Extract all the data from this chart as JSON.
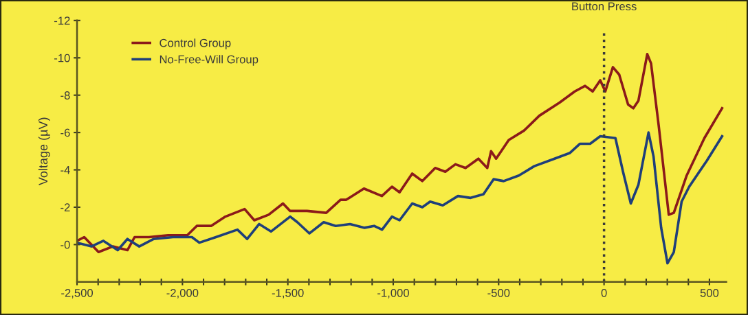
{
  "chart_data": {
    "type": "line",
    "ylabel": "Voltage (µV)",
    "legend": "top left",
    "grid": false,
    "marker": "none",
    "line_style": "solid",
    "xlim": [
      -2500,
      580
    ],
    "ylim": [
      2,
      -12
    ],
    "xticks": [
      {
        "value": -2500,
        "label": "-2,500"
      },
      {
        "value": -2400,
        "label": null
      },
      {
        "value": -2300,
        "label": null
      },
      {
        "value": -2200,
        "label": null
      },
      {
        "value": -2100,
        "label": null
      },
      {
        "value": -2000,
        "label": "-2,000"
      },
      {
        "value": -1900,
        "label": null
      },
      {
        "value": -1800,
        "label": null
      },
      {
        "value": -1700,
        "label": null
      },
      {
        "value": -1600,
        "label": null
      },
      {
        "value": -1500,
        "label": "-1,500"
      },
      {
        "value": -1400,
        "label": null
      },
      {
        "value": -1300,
        "label": null
      },
      {
        "value": -1200,
        "label": null
      },
      {
        "value": -1100,
        "label": null
      },
      {
        "value": -1000,
        "label": "-1,000"
      },
      {
        "value": -900,
        "label": null
      },
      {
        "value": -800,
        "label": null
      },
      {
        "value": -700,
        "label": null
      },
      {
        "value": -600,
        "label": null
      },
      {
        "value": -500,
        "label": "-500"
      },
      {
        "value": -400,
        "label": null
      },
      {
        "value": -300,
        "label": null
      },
      {
        "value": -200,
        "label": null
      },
      {
        "value": -100,
        "label": null
      },
      {
        "value": 0,
        "label": "0"
      },
      {
        "value": 100,
        "label": null
      },
      {
        "value": 200,
        "label": null
      },
      {
        "value": 300,
        "label": null
      },
      {
        "value": 400,
        "label": null
      },
      {
        "value": 500,
        "label": "500"
      }
    ],
    "yticks": [
      -12,
      -10,
      -8,
      -6,
      -4,
      -2,
      {
        "value": 0,
        "label": "-0"
      }
    ],
    "ref_lines": [
      {
        "axis": "x",
        "value": 0,
        "label": "Button Press",
        "color": "#3a3a3a",
        "line_style": "dotted"
      }
    ],
    "series": [
      {
        "name": "Control Group",
        "color": "#8b1a1a",
        "x": [
          -2500,
          -2466,
          -2398,
          -2330,
          -2261,
          -2227,
          -2159,
          -2068,
          -1977,
          -1932,
          -1864,
          -1796,
          -1705,
          -1659,
          -1591,
          -1523,
          -1489,
          -1409,
          -1318,
          -1250,
          -1223,
          -1139,
          -1054,
          -1006,
          -970,
          -910,
          -862,
          -801,
          -753,
          -705,
          -657,
          -596,
          -554,
          -536,
          -512,
          -452,
          -380,
          -307,
          -211,
          -139,
          -90,
          -54,
          -18,
          6,
          42,
          72,
          114,
          139,
          163,
          205,
          223,
          259,
          307,
          331,
          392,
          476,
          560
        ],
        "values": [
          -0.2,
          -0.4,
          0.4,
          0.1,
          0.3,
          -0.4,
          -0.4,
          -0.5,
          -0.5,
          -1.0,
          -1.0,
          -1.5,
          -1.9,
          -1.3,
          -1.6,
          -2.2,
          -1.8,
          -1.8,
          -1.7,
          -2.4,
          -2.4,
          -3.0,
          -2.6,
          -3.1,
          -2.8,
          -3.8,
          -3.4,
          -4.1,
          -3.9,
          -4.3,
          -4.1,
          -4.6,
          -4.1,
          -5.0,
          -4.6,
          -5.6,
          -6.1,
          -6.9,
          -7.6,
          -8.2,
          -8.5,
          -8.2,
          -8.8,
          -8.2,
          -9.5,
          -9.1,
          -7.5,
          -7.3,
          -7.7,
          -10.2,
          -9.7,
          -6.4,
          -1.6,
          -1.7,
          -3.7,
          -5.7,
          -7.3
        ]
      },
      {
        "name": "No-Free-Will Group",
        "color": "#1f3f7a",
        "x": [
          -2500,
          -2432,
          -2375,
          -2307,
          -2261,
          -2205,
          -2136,
          -2045,
          -1955,
          -1920,
          -1841,
          -1739,
          -1693,
          -1636,
          -1580,
          -1489,
          -1455,
          -1398,
          -1330,
          -1273,
          -1205,
          -1136,
          -1091,
          -1053,
          -1006,
          -970,
          -910,
          -862,
          -825,
          -765,
          -693,
          -633,
          -572,
          -524,
          -476,
          -404,
          -331,
          -235,
          -163,
          -114,
          -66,
          -18,
          54,
          90,
          127,
          163,
          211,
          235,
          271,
          301,
          331,
          368,
          404,
          488,
          560
        ],
        "values": [
          -0.1,
          0.1,
          -0.2,
          0.3,
          -0.3,
          0.1,
          -0.3,
          -0.4,
          -0.4,
          -0.1,
          -0.4,
          -0.8,
          -0.3,
          -1.1,
          -0.7,
          -1.5,
          -1.2,
          -0.6,
          -1.2,
          -1.0,
          -1.1,
          -0.9,
          -1.0,
          -0.8,
          -1.5,
          -1.3,
          -2.2,
          -2.0,
          -2.3,
          -2.1,
          -2.6,
          -2.5,
          -2.7,
          -3.5,
          -3.4,
          -3.7,
          -4.2,
          -4.6,
          -4.9,
          -5.4,
          -5.4,
          -5.8,
          -5.7,
          -3.9,
          -2.2,
          -3.2,
          -6.0,
          -4.7,
          -0.9,
          1.0,
          0.4,
          -2.3,
          -3.1,
          -4.5,
          -5.8
        ]
      }
    ]
  }
}
